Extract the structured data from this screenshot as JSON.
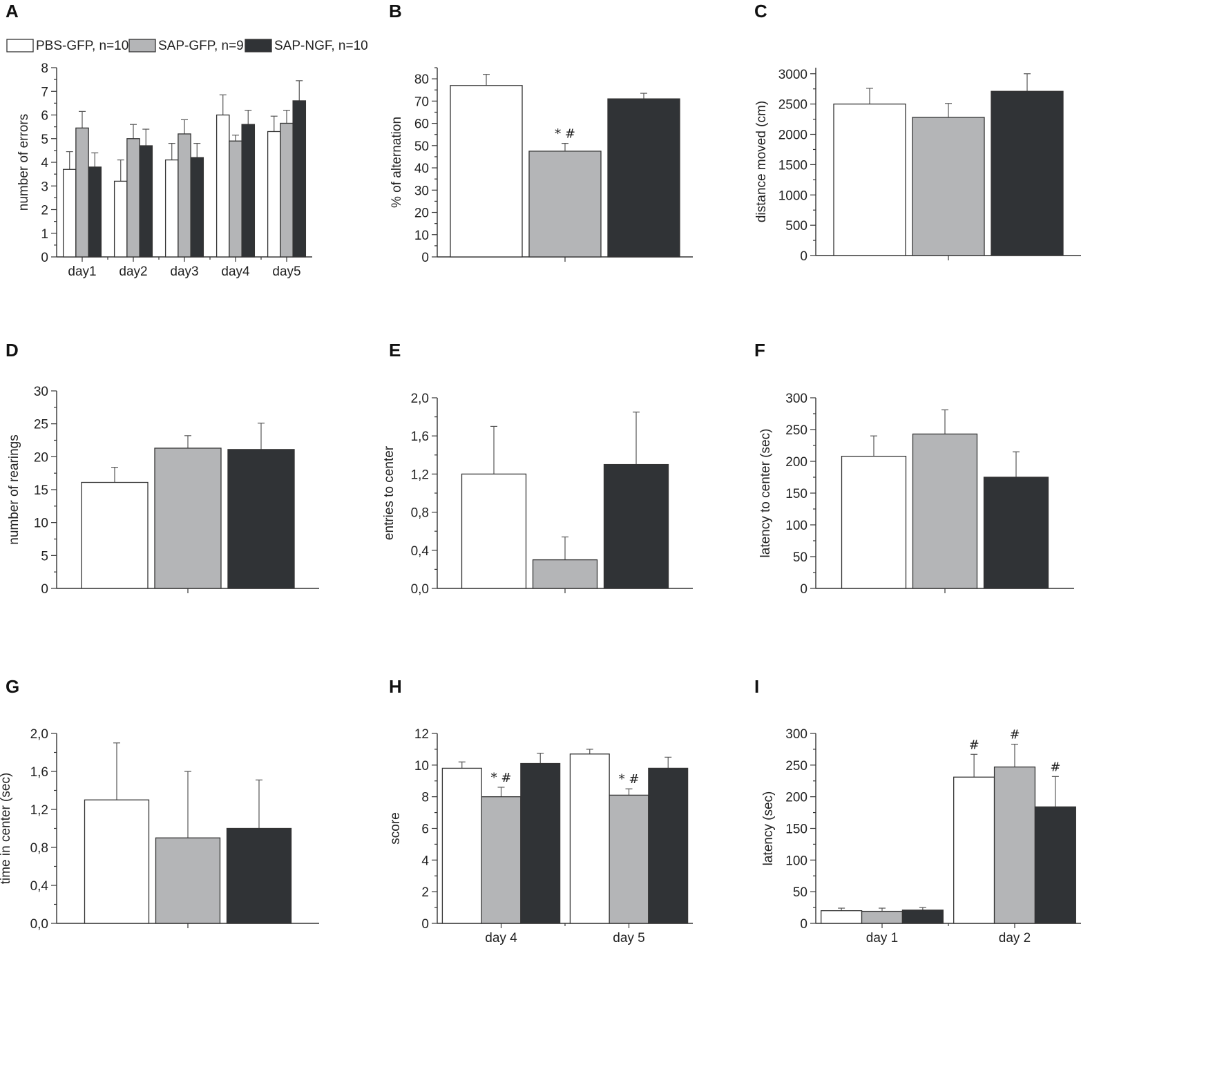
{
  "colors": {
    "PBS-GFP": "#ffffff",
    "SAP-GFP": "#b4b5b7",
    "SAP-NGF": "#303336"
  },
  "legend": {
    "entries": [
      {
        "series": "PBS-GFP",
        "label": "PBS-GFP, n=10"
      },
      {
        "series": "SAP-GFP",
        "label": "SAP-GFP, n=9"
      },
      {
        "series": "SAP-NGF",
        "label": "SAP-NGF, n=10"
      }
    ]
  },
  "chart_data": [
    {
      "panel": "A",
      "type": "bar",
      "ylabel": "number of errors",
      "ylim": [
        0,
        8
      ],
      "yticks": [
        "0",
        "1",
        "2",
        "3",
        "4",
        "5",
        "6",
        "7",
        "8"
      ],
      "categories": [
        "day1",
        "day2",
        "day3",
        "day4",
        "day5"
      ],
      "series": [
        {
          "name": "PBS-GFP",
          "values": [
            3.7,
            3.2,
            4.1,
            6.0,
            5.3
          ],
          "errors": [
            0.75,
            0.9,
            0.7,
            0.85,
            0.65
          ]
        },
        {
          "name": "SAP-GFP",
          "values": [
            5.45,
            5.0,
            5.2,
            4.9,
            5.65
          ],
          "errors": [
            0.7,
            0.6,
            0.6,
            0.25,
            0.55
          ]
        },
        {
          "name": "SAP-NGF",
          "values": [
            3.8,
            4.7,
            4.2,
            5.6,
            6.6
          ],
          "errors": [
            0.6,
            0.7,
            0.6,
            0.6,
            0.85
          ]
        }
      ],
      "annotations": []
    },
    {
      "panel": "B",
      "type": "bar",
      "ylabel": "% of alternation",
      "ylim": [
        0,
        85
      ],
      "yticks": [
        "0",
        "10",
        "20",
        "30",
        "40",
        "50",
        "60",
        "70",
        "80"
      ],
      "categories": [
        ""
      ],
      "series": [
        {
          "name": "PBS-GFP",
          "values": [
            77
          ],
          "errors": [
            5
          ]
        },
        {
          "name": "SAP-GFP",
          "values": [
            47.5
          ],
          "errors": [
            3.5
          ]
        },
        {
          "name": "SAP-NGF",
          "values": [
            71
          ],
          "errors": [
            2.5
          ]
        }
      ],
      "annotations": [
        {
          "series": "SAP-GFP",
          "category": 0,
          "text": "* #"
        }
      ]
    },
    {
      "panel": "C",
      "type": "bar",
      "ylabel": "distance moved (cm)",
      "ylim": [
        0,
        3100
      ],
      "yticks": [
        "0",
        "500",
        "1000",
        "1500",
        "2000",
        "2500",
        "3000"
      ],
      "categories": [
        ""
      ],
      "series": [
        {
          "name": "PBS-GFP",
          "values": [
            2500
          ],
          "errors": [
            260
          ]
        },
        {
          "name": "SAP-GFP",
          "values": [
            2280
          ],
          "errors": [
            230
          ]
        },
        {
          "name": "SAP-NGF",
          "values": [
            2710
          ],
          "errors": [
            290
          ]
        }
      ],
      "annotations": []
    },
    {
      "panel": "D",
      "type": "bar",
      "ylabel": "number of rearings",
      "ylim": [
        0,
        30
      ],
      "yticks": [
        "0",
        "5",
        "10",
        "15",
        "20",
        "25",
        "30"
      ],
      "categories": [
        ""
      ],
      "series": [
        {
          "name": "PBS-GFP",
          "values": [
            16.1
          ],
          "errors": [
            2.3
          ]
        },
        {
          "name": "SAP-GFP",
          "values": [
            21.3
          ],
          "errors": [
            1.9
          ]
        },
        {
          "name": "SAP-NGF",
          "values": [
            21.1
          ],
          "errors": [
            4.0
          ]
        }
      ],
      "annotations": []
    },
    {
      "panel": "E",
      "type": "bar",
      "ylabel": "entries to center",
      "ylim": [
        0,
        2.0
      ],
      "yticks": [
        "0,0",
        "0,4",
        "0,8",
        "1,2",
        "1,6",
        "2,0"
      ],
      "categories": [
        ""
      ],
      "series": [
        {
          "name": "PBS-GFP",
          "values": [
            1.2
          ],
          "errors": [
            0.5
          ]
        },
        {
          "name": "SAP-GFP",
          "values": [
            0.3
          ],
          "errors": [
            0.24
          ]
        },
        {
          "name": "SAP-NGF",
          "values": [
            1.3
          ],
          "errors": [
            0.55
          ]
        }
      ],
      "annotations": []
    },
    {
      "panel": "F",
      "type": "bar",
      "ylabel": "latency to center (sec)",
      "ylim": [
        0,
        300
      ],
      "yticks": [
        "0",
        "50",
        "100",
        "150",
        "200",
        "250",
        "300"
      ],
      "categories": [
        ""
      ],
      "series": [
        {
          "name": "PBS-GFP",
          "values": [
            208
          ],
          "errors": [
            32
          ]
        },
        {
          "name": "SAP-GFP",
          "values": [
            243
          ],
          "errors": [
            38
          ]
        },
        {
          "name": "SAP-NGF",
          "values": [
            175
          ],
          "errors": [
            40
          ]
        }
      ],
      "annotations": []
    },
    {
      "panel": "G",
      "type": "bar",
      "ylabel": "time in center (sec)",
      "ylim": [
        0,
        2.0
      ],
      "yticks": [
        "0,0",
        "0,4",
        "0,8",
        "1,2",
        "1,6",
        "2,0"
      ],
      "categories": [
        ""
      ],
      "series": [
        {
          "name": "PBS-GFP",
          "values": [
            1.3
          ],
          "errors": [
            0.6
          ]
        },
        {
          "name": "SAP-GFP",
          "values": [
            0.9
          ],
          "errors": [
            0.7
          ]
        },
        {
          "name": "SAP-NGF",
          "values": [
            1.0
          ],
          "errors": [
            0.51
          ]
        }
      ],
      "annotations": []
    },
    {
      "panel": "H",
      "type": "bar",
      "ylabel": "score",
      "ylim": [
        0,
        12
      ],
      "yticks": [
        "0",
        "2",
        "4",
        "6",
        "8",
        "10",
        "12"
      ],
      "categories": [
        "day 4",
        "day 5"
      ],
      "series": [
        {
          "name": "PBS-GFP",
          "values": [
            9.8,
            10.7
          ],
          "errors": [
            0.4,
            0.3
          ]
        },
        {
          "name": "SAP-GFP",
          "values": [
            8.0,
            8.1
          ],
          "errors": [
            0.6,
            0.4
          ]
        },
        {
          "name": "SAP-NGF",
          "values": [
            10.1,
            9.8
          ],
          "errors": [
            0.65,
            0.7
          ]
        }
      ],
      "annotations": [
        {
          "series": "SAP-GFP",
          "category": 0,
          "text": "* #"
        },
        {
          "series": "SAP-GFP",
          "category": 1,
          "text": "* #"
        }
      ]
    },
    {
      "panel": "I",
      "type": "bar",
      "ylabel": "latency (sec)",
      "ylim": [
        0,
        300
      ],
      "yticks": [
        "0",
        "50",
        "100",
        "150",
        "200",
        "250",
        "300"
      ],
      "categories": [
        "day 1",
        "day 2"
      ],
      "series": [
        {
          "name": "PBS-GFP",
          "values": [
            20,
            231
          ],
          "errors": [
            4,
            36
          ]
        },
        {
          "name": "SAP-GFP",
          "values": [
            19,
            247
          ],
          "errors": [
            5,
            36
          ]
        },
        {
          "name": "SAP-NGF",
          "values": [
            21,
            184
          ],
          "errors": [
            4,
            48
          ]
        }
      ],
      "annotations": [
        {
          "series": "PBS-GFP",
          "category": 1,
          "text": "#"
        },
        {
          "series": "SAP-GFP",
          "category": 1,
          "text": "#"
        },
        {
          "series": "SAP-NGF",
          "category": 1,
          "text": "#"
        }
      ]
    }
  ]
}
